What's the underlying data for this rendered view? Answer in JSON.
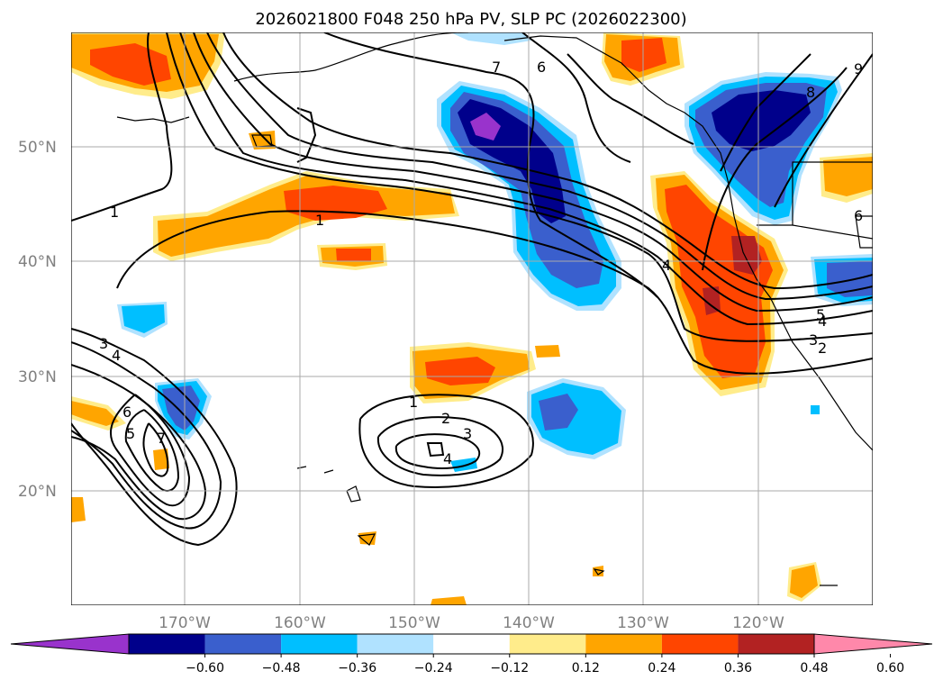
{
  "title": "2026021800 F048 250 hPa PV, SLP PC (2026022300)",
  "lat_labels": [
    "50°N",
    "40°N",
    "30°N",
    "20°N"
  ],
  "lon_labels": [
    "170°W",
    "160°W",
    "150°W",
    "140°W",
    "130°W",
    "120°W"
  ],
  "colorbar": {
    "ticks": [
      "−0.60",
      "−0.48",
      "−0.36",
      "−0.24",
      "−0.12",
      "0.12",
      "0.24",
      "0.36",
      "0.48",
      "0.60"
    ],
    "colors": [
      "#9933cc",
      "#00008b",
      "#3a5fcd",
      "#00bfff",
      "#b0e2ff",
      "#ffffff",
      "#ffec8b",
      "#ffa500",
      "#ff4500",
      "#b22222",
      "#ff88aa"
    ]
  },
  "contour_labels": [
    "1",
    "1",
    "4",
    "6",
    "7",
    "8",
    "9",
    "3",
    "4",
    "6",
    "5",
    "7",
    "1",
    "2",
    "3",
    "4",
    "4",
    "5",
    "3",
    "2",
    "6"
  ]
}
